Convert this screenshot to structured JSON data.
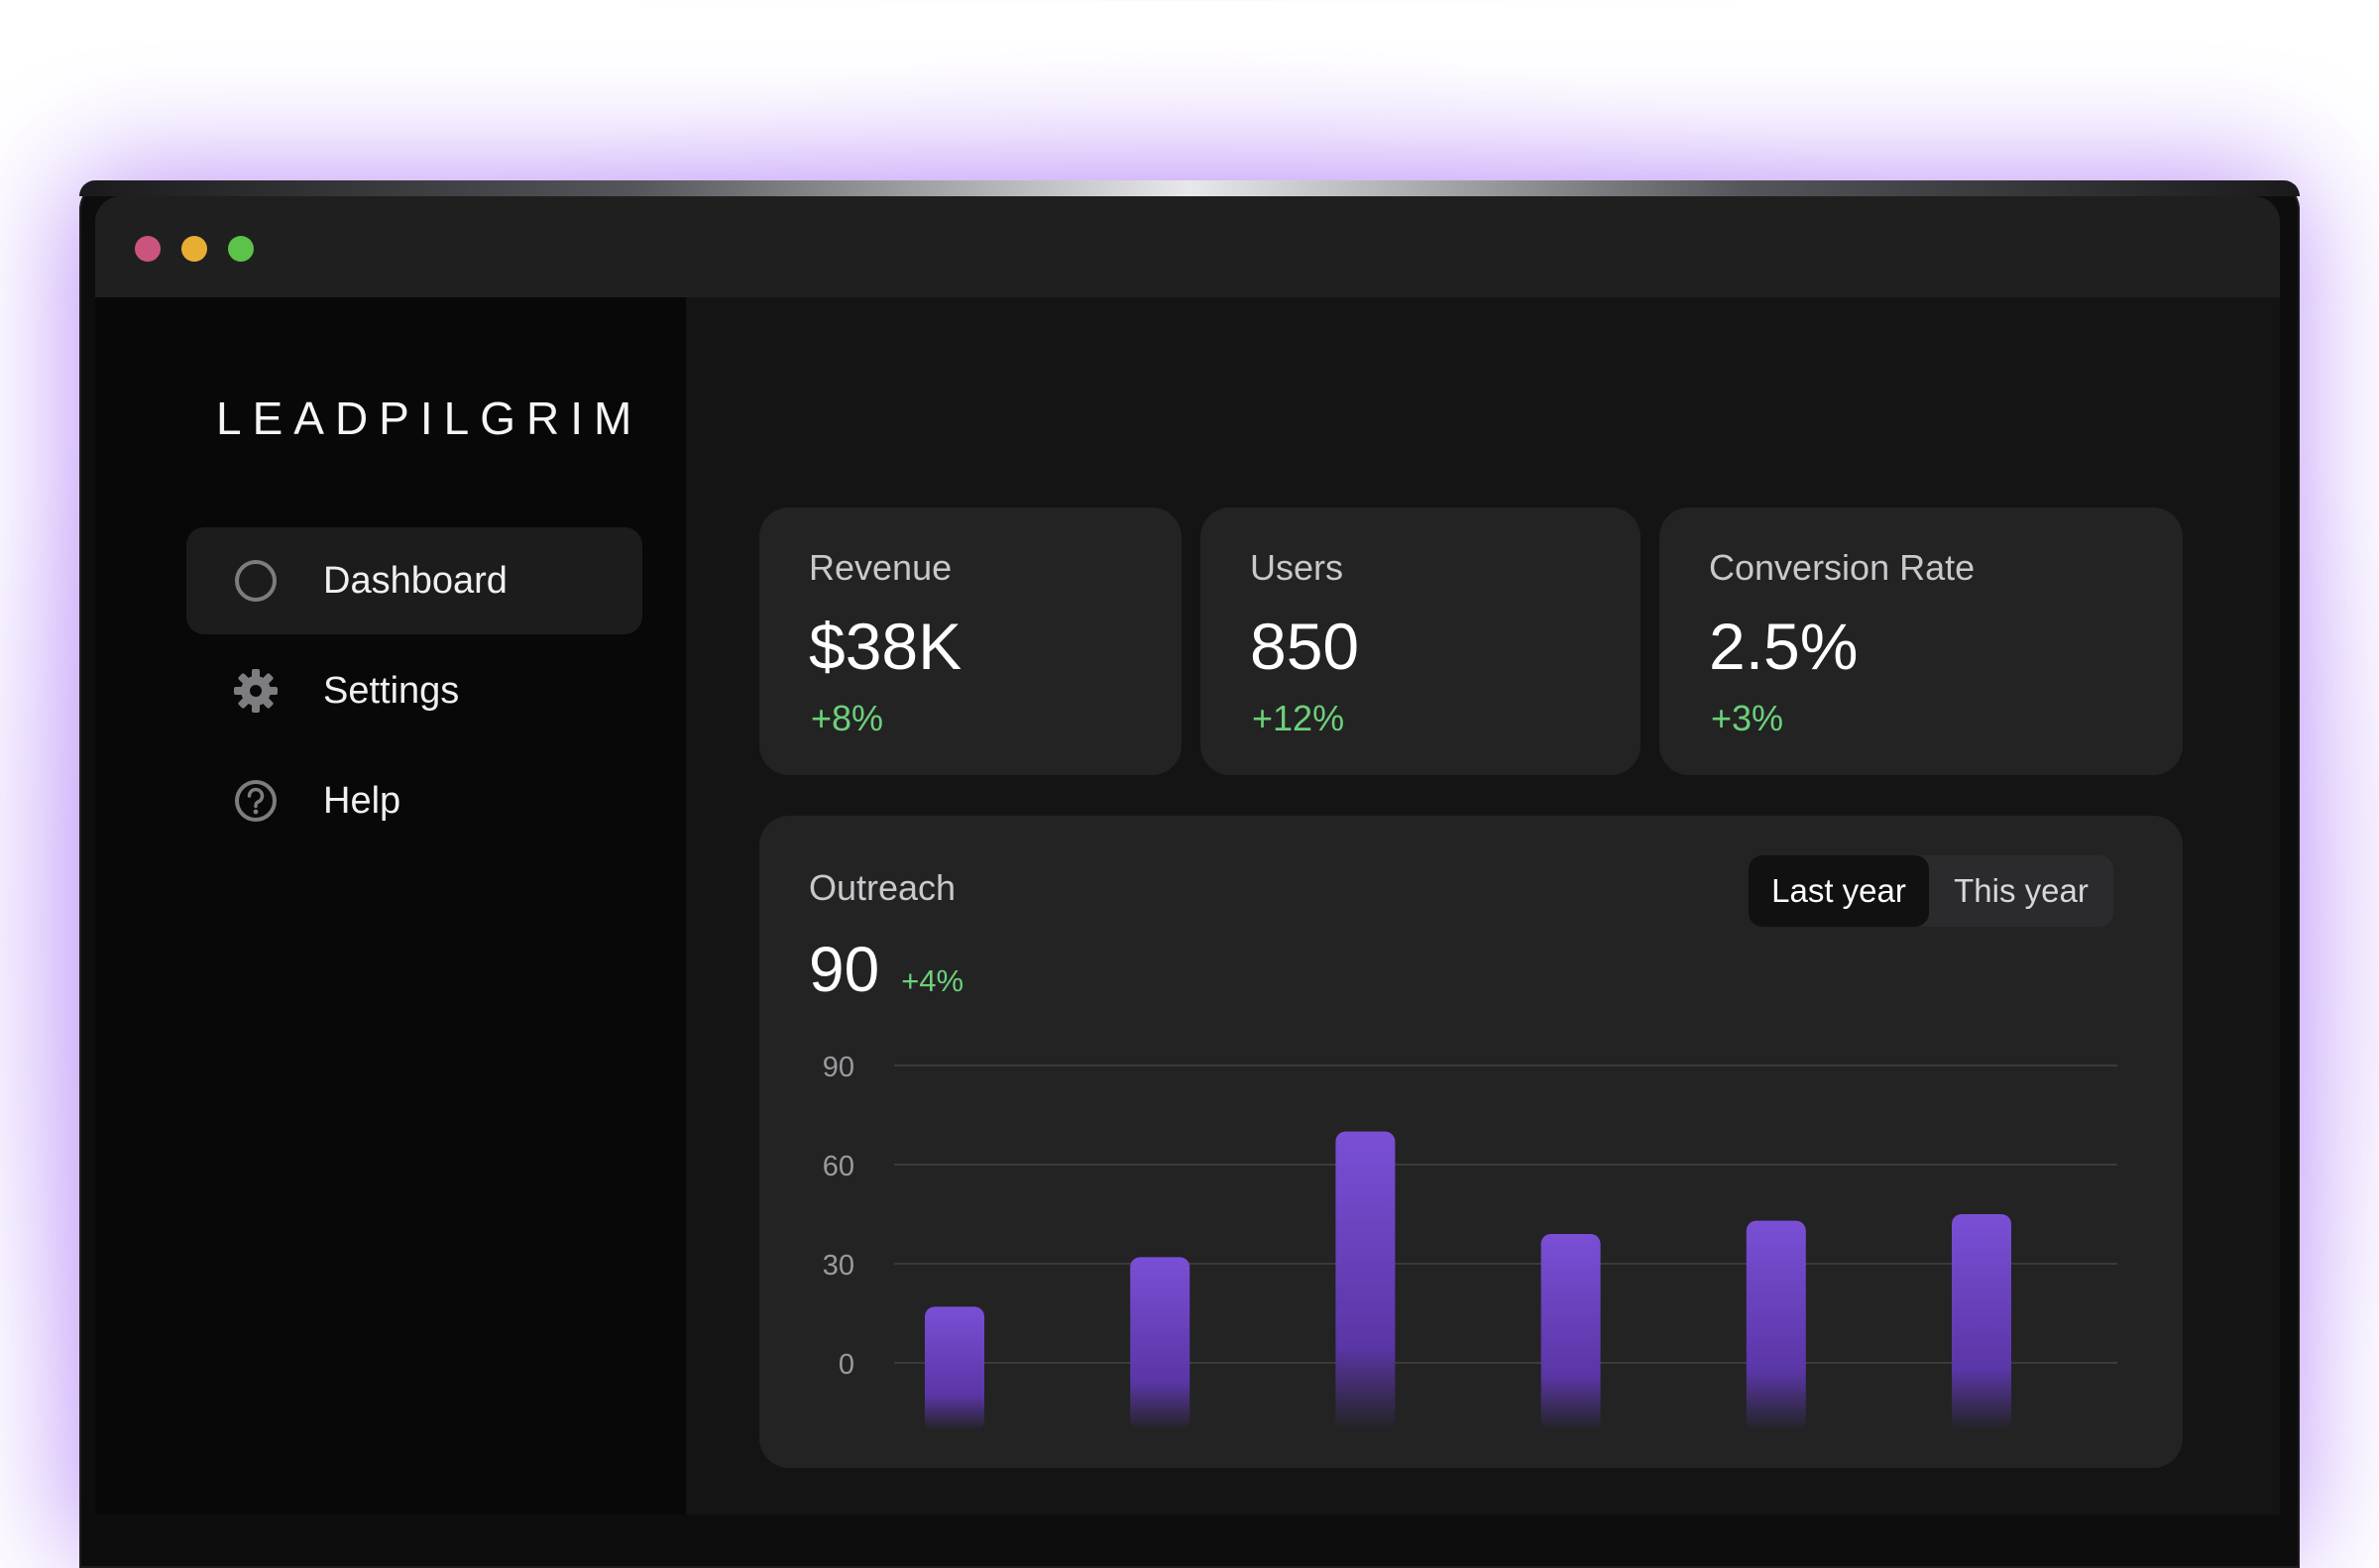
{
  "app": {
    "logo": "LEADPILGRIM"
  },
  "window_controls": {
    "close_color": "#c9557f",
    "minimize_color": "#e8ae34",
    "maximize_color": "#5bc24a"
  },
  "sidebar": {
    "items": [
      {
        "label": "Dashboard",
        "icon": "circle-icon",
        "active": true
      },
      {
        "label": "Settings",
        "icon": "gear-icon",
        "active": false
      },
      {
        "label": "Help",
        "icon": "help-icon",
        "active": false
      }
    ]
  },
  "stats": [
    {
      "label": "Revenue",
      "value": "$38K",
      "delta": "+8%"
    },
    {
      "label": "Users",
      "value": "850",
      "delta": "+12%"
    },
    {
      "label": "Conversion Rate",
      "value": "2.5%",
      "delta": "+3%"
    }
  ],
  "outreach": {
    "title": "Outreach",
    "value": "90",
    "delta": "+4%",
    "toggle": {
      "options": [
        "Last year",
        "This year"
      ],
      "selected": "Last year"
    }
  },
  "colors": {
    "accent": "#7a4fd6",
    "positive": "#6dd07a",
    "card_bg": "#232324"
  },
  "chart_data": {
    "type": "bar",
    "series": [
      {
        "values": [
          17,
          32,
          70,
          39,
          43,
          45
        ]
      }
    ],
    "yticks": [
      0,
      30,
      60,
      90
    ],
    "ylim": [
      0,
      90
    ],
    "grid": true
  }
}
